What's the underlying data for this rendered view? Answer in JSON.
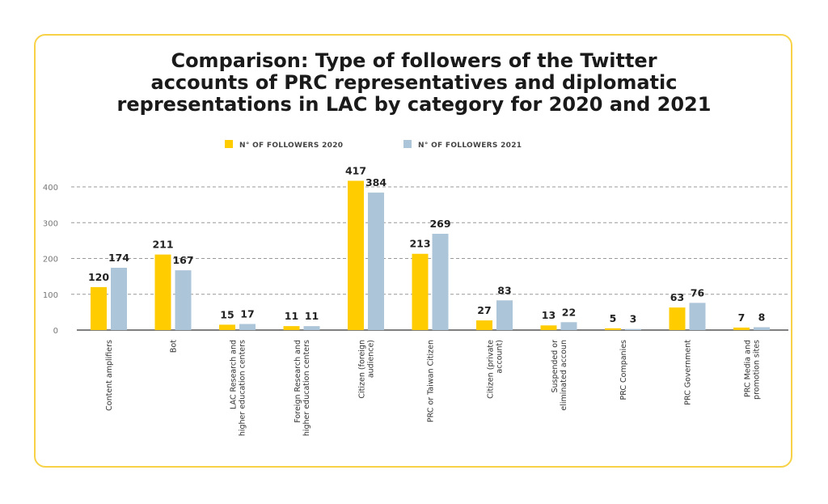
{
  "chart_data": {
    "type": "bar",
    "title": [
      "Comparison: Type of followers of the Twitter",
      "accounts of PRC representatives and diplomatic",
      "representations in LAC by category for 2020 and 2021"
    ],
    "categories": [
      [
        "Content amplifiers"
      ],
      [
        "Bot"
      ],
      [
        "LAC Research and",
        "higher education centers"
      ],
      [
        "Foreign Research and",
        "higher education centers"
      ],
      [
        "Citizen (foreign",
        "audience)"
      ],
      [
        "PRC or Taiwan Citizen"
      ],
      [
        "Citizen (private",
        "account)"
      ],
      [
        "Suspended or",
        "eliminated accoun"
      ],
      [
        "PRC Companies"
      ],
      [
        "PRC Government"
      ],
      [
        "PRC Media and",
        "promotion sites"
      ]
    ],
    "series": [
      {
        "name": "N° OF FOLLOWERS 2020",
        "color": "#ffcc00",
        "values": [
          120,
          211,
          15,
          11,
          417,
          213,
          27,
          13,
          5,
          63,
          7
        ]
      },
      {
        "name": "N° OF FOLLOWERS 2021",
        "color": "#adc5d8",
        "values": [
          174,
          167,
          17,
          11,
          384,
          269,
          83,
          22,
          3,
          76,
          8
        ]
      }
    ],
    "yticks": [
      0,
      100,
      200,
      300,
      400
    ],
    "ylim": [
      0,
      450
    ],
    "grid": true,
    "legend": "top-center",
    "xlabel": "",
    "ylabel": ""
  }
}
